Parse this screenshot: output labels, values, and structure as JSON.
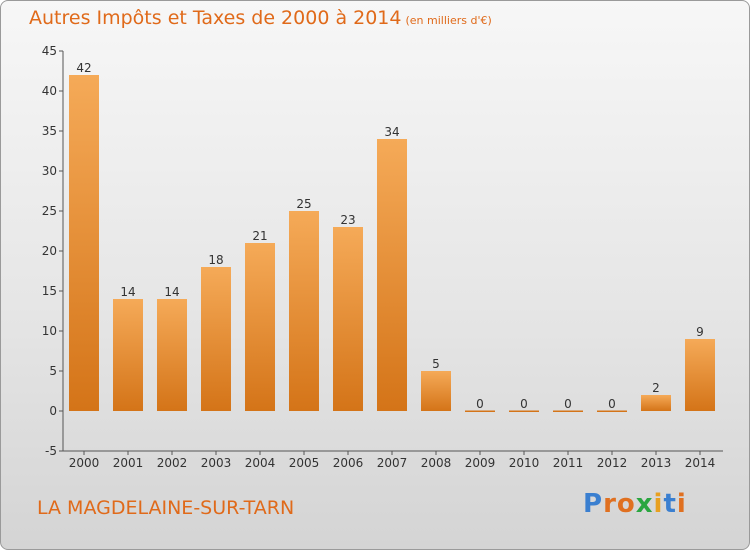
{
  "title": "Autres Impôts et Taxes de 2000 à 2014",
  "subtitle": "(en milliers d'€)",
  "place": "LA MAGDELAINE-SUR-TARN",
  "logo": {
    "text": "Proxiti",
    "letters": [
      "P",
      "r",
      "o",
      "x",
      "i",
      "t",
      "i"
    ],
    "colors": [
      "#3a7fd0",
      "#e07020",
      "#e07020",
      "#2aa640",
      "#e8a020",
      "#3a7fd0",
      "#e07020"
    ]
  },
  "colors": {
    "bar": "#f0a050",
    "bar_dark": "#d87820",
    "accent": "#e06a1a"
  },
  "chart_data": {
    "type": "bar",
    "categories": [
      "2000",
      "2001",
      "2002",
      "2003",
      "2004",
      "2005",
      "2006",
      "2007",
      "2008",
      "2009",
      "2010",
      "2011",
      "2012",
      "2013",
      "2014"
    ],
    "values": [
      42,
      14,
      14,
      18,
      21,
      25,
      23,
      34,
      5,
      0,
      0,
      0,
      0,
      2,
      9
    ],
    "ylim": [
      -5,
      45
    ],
    "yticks": [
      "-5",
      "0",
      "5",
      "10",
      "15",
      "20",
      "25",
      "30",
      "35",
      "40",
      "45"
    ],
    "grid": false
  }
}
